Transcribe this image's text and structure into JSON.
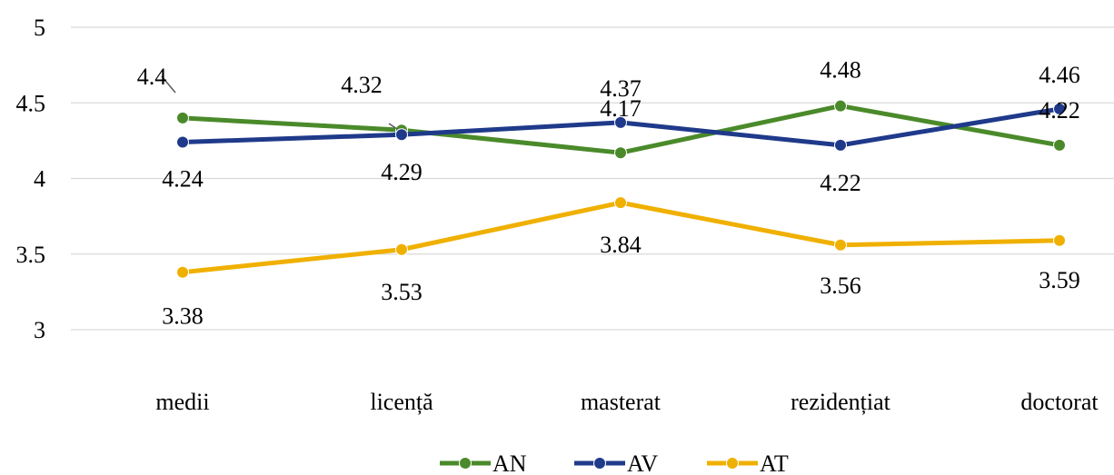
{
  "chart_data": {
    "type": "line",
    "title": "",
    "xlabel": "",
    "ylabel": "",
    "categories": [
      "medii",
      "licență",
      "masterat",
      "rezidențiat",
      "doctorat"
    ],
    "ylim": [
      3,
      5
    ],
    "yticks": [
      3,
      3.5,
      4,
      4.5,
      5
    ],
    "ytick_labels": [
      "3",
      "3.5",
      "4",
      "4.5",
      "5"
    ],
    "grid": true,
    "legend": "bottom",
    "series": [
      {
        "name": "AN",
        "color": "#4a8a2a",
        "values": [
          4.4,
          4.32,
          4.17,
          4.48,
          4.22
        ],
        "labels": [
          "4.4",
          "4.32",
          "4.17",
          "4.48",
          "4.22"
        ]
      },
      {
        "name": "AV",
        "color": "#1f3a8a",
        "values": [
          4.24,
          4.29,
          4.37,
          4.22,
          4.46
        ],
        "labels": [
          "4.24",
          "4.29",
          "4.37",
          "4.22",
          "4.46"
        ]
      },
      {
        "name": "AT",
        "color": "#f0b000",
        "values": [
          3.38,
          3.53,
          3.84,
          3.56,
          3.59
        ],
        "labels": [
          "3.38",
          "3.53",
          "3.84",
          "3.56",
          "3.59"
        ]
      }
    ]
  }
}
